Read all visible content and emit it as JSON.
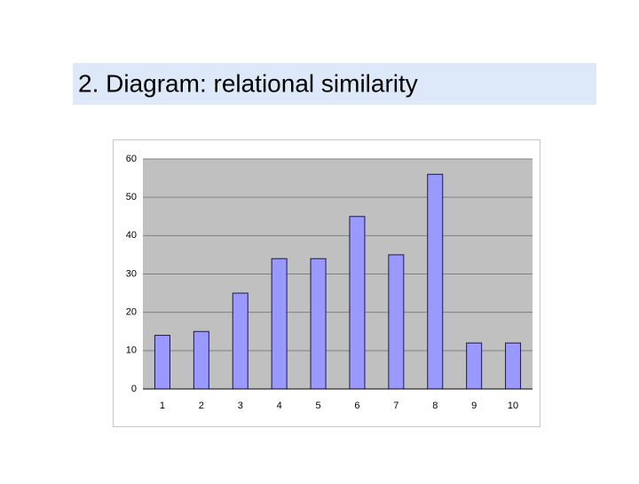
{
  "chart_data": {
    "type": "bar",
    "title": "2. Diagram: relational similarity",
    "categories": [
      "1",
      "2",
      "3",
      "4",
      "5",
      "6",
      "7",
      "8",
      "9",
      "10"
    ],
    "values": [
      14,
      15,
      25,
      34,
      34,
      45,
      35,
      56,
      12,
      12
    ],
    "color": "#9999ff",
    "ylim": [
      0,
      60
    ],
    "yticks": [
      0,
      10,
      20,
      30,
      40,
      50,
      60
    ],
    "grid": true
  }
}
